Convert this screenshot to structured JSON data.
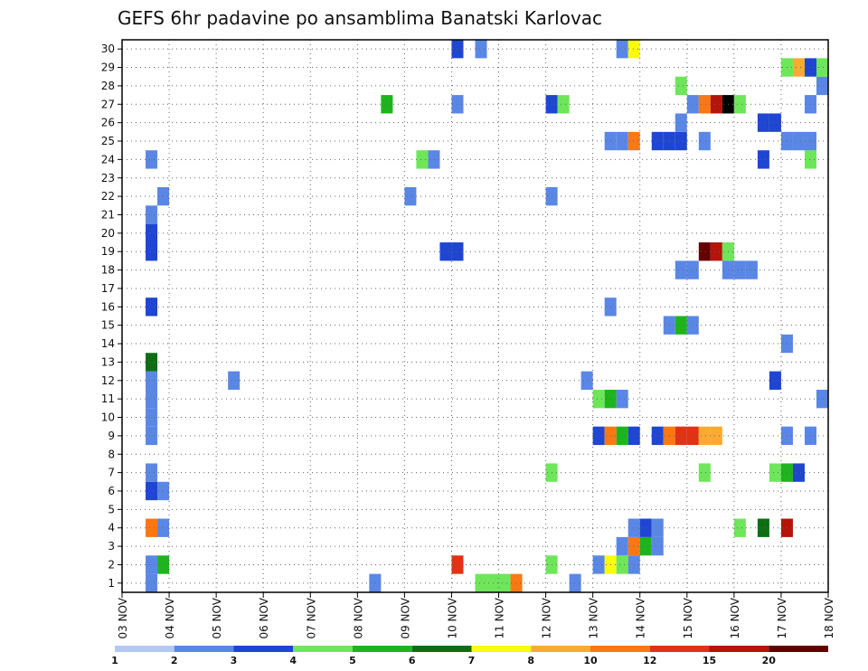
{
  "chart_data": {
    "type": "heatmap",
    "title": "GEFS 6hr padavine po ansamblima Banatski Karlovac",
    "xlabel": "",
    "ylabel": "",
    "x_tick_labels": [
      "03 NOV",
      "04 NOV",
      "05 NOV",
      "06 NOV",
      "07 NOV",
      "08 NOV",
      "09 NOV",
      "10 NOV",
      "11 NOV",
      "12 NOV",
      "13 NOV",
      "14 NOV",
      "15 NOV",
      "16 NOV",
      "17 NOV",
      "18 NOV"
    ],
    "xlim_days": [
      0,
      15
    ],
    "ylim_members": [
      0.5,
      30.5
    ],
    "y_tick_labels": [
      "1",
      "2",
      "3",
      "4",
      "5",
      "6",
      "7",
      "8",
      "9",
      "10",
      "11",
      "12",
      "13",
      "14",
      "15",
      "16",
      "17",
      "18",
      "19",
      "20",
      "21",
      "22",
      "23",
      "24",
      "25",
      "26",
      "27",
      "28",
      "29",
      "30"
    ],
    "grid": true,
    "legend": {
      "placement": "bottom",
      "labels": [
        "1",
        "2",
        "3",
        "4",
        "5",
        "6",
        "7",
        "8",
        "10",
        "12",
        "15",
        "20"
      ],
      "colors": [
        "#b4c8f5",
        "#5a87e6",
        "#1e46d2",
        "#6ee65a",
        "#1eb41e",
        "#0f6e14",
        "#fafa0f",
        "#faaa32",
        "#fa7814",
        "#e13214",
        "#b4140a",
        "#640000"
      ]
    },
    "cell_width_days": 0.25,
    "cells": [
      [
        0.5,
        1,
        1
      ],
      [
        0.5,
        2,
        1
      ],
      [
        0.75,
        2,
        4
      ],
      [
        0.5,
        4,
        8
      ],
      [
        0.75,
        4,
        1
      ],
      [
        0.5,
        6,
        2
      ],
      [
        0.75,
        6,
        1
      ],
      [
        0.5,
        7,
        1
      ],
      [
        0.5,
        9,
        1
      ],
      [
        0.5,
        10,
        1
      ],
      [
        0.5,
        11,
        1
      ],
      [
        0.5,
        12,
        1
      ],
      [
        0.5,
        13,
        5
      ],
      [
        0.5,
        16,
        2
      ],
      [
        0.5,
        19,
        2
      ],
      [
        0.5,
        20,
        2
      ],
      [
        0.5,
        21,
        1
      ],
      [
        0.75,
        22,
        1
      ],
      [
        0.5,
        24,
        1
      ],
      [
        2.25,
        12,
        1
      ],
      [
        5.25,
        1,
        1
      ],
      [
        5.5,
        27,
        4
      ],
      [
        6.0,
        22,
        1
      ],
      [
        6.25,
        24,
        3
      ],
      [
        6.5,
        24,
        1
      ],
      [
        6.75,
        19,
        2
      ],
      [
        7.0,
        19,
        2
      ],
      [
        7.0,
        2,
        9
      ],
      [
        7.0,
        27,
        1
      ],
      [
        7.0,
        30,
        2
      ],
      [
        7.5,
        1,
        3
      ],
      [
        7.75,
        1,
        3
      ],
      [
        8.0,
        1,
        3
      ],
      [
        8.25,
        1,
        8
      ],
      [
        7.5,
        30,
        1
      ],
      [
        9.0,
        2,
        3
      ],
      [
        9.0,
        7,
        3
      ],
      [
        9.0,
        22,
        1
      ],
      [
        9.0,
        27,
        2
      ],
      [
        9.25,
        27,
        3
      ],
      [
        9.5,
        1,
        1
      ],
      [
        9.75,
        12,
        1
      ],
      [
        10.0,
        2,
        1
      ],
      [
        10.25,
        2,
        6
      ],
      [
        10.5,
        2,
        3
      ],
      [
        10.75,
        2,
        1
      ],
      [
        10.5,
        3,
        1
      ],
      [
        10.75,
        3,
        8
      ],
      [
        11.0,
        3,
        4
      ],
      [
        11.25,
        3,
        1
      ],
      [
        10.75,
        4,
        1
      ],
      [
        11.0,
        4,
        2
      ],
      [
        11.25,
        4,
        1
      ],
      [
        10.0,
        9,
        2
      ],
      [
        10.25,
        9,
        8
      ],
      [
        10.5,
        9,
        4
      ],
      [
        10.75,
        9,
        2
      ],
      [
        11.25,
        9,
        2
      ],
      [
        11.5,
        9,
        8
      ],
      [
        11.75,
        9,
        9
      ],
      [
        12.0,
        9,
        9
      ],
      [
        12.25,
        9,
        7
      ],
      [
        12.5,
        9,
        7
      ],
      [
        10.0,
        11,
        3
      ],
      [
        10.25,
        11,
        4
      ],
      [
        10.5,
        11,
        1
      ],
      [
        10.25,
        16,
        1
      ],
      [
        11.5,
        15,
        1
      ],
      [
        11.75,
        15,
        4
      ],
      [
        12.0,
        15,
        1
      ],
      [
        11.75,
        18,
        1
      ],
      [
        12.0,
        18,
        1
      ],
      [
        12.25,
        19,
        11
      ],
      [
        12.5,
        19,
        10
      ],
      [
        12.75,
        19,
        3
      ],
      [
        12.75,
        18,
        1
      ],
      [
        13.0,
        18,
        1
      ],
      [
        13.25,
        18,
        1
      ],
      [
        10.25,
        25,
        1
      ],
      [
        10.5,
        25,
        1
      ],
      [
        10.75,
        25,
        8
      ],
      [
        11.25,
        25,
        2
      ],
      [
        11.5,
        25,
        2
      ],
      [
        11.75,
        25,
        2
      ],
      [
        12.25,
        25,
        1
      ],
      [
        11.75,
        26,
        1
      ],
      [
        12.0,
        27,
        1
      ],
      [
        12.25,
        27,
        8
      ],
      [
        12.5,
        27,
        10
      ],
      [
        12.75,
        27,
        12
      ],
      [
        13.0,
        27,
        3
      ],
      [
        11.75,
        28,
        3
      ],
      [
        10.5,
        30,
        1
      ],
      [
        10.75,
        30,
        6
      ],
      [
        12.25,
        7,
        3
      ],
      [
        13.0,
        4,
        3
      ],
      [
        13.5,
        4,
        5
      ],
      [
        14.0,
        4,
        10
      ],
      [
        13.75,
        7,
        3
      ],
      [
        14.0,
        7,
        4
      ],
      [
        14.25,
        7,
        2
      ],
      [
        13.75,
        12,
        2
      ],
      [
        14.0,
        9,
        1
      ],
      [
        14.5,
        9,
        1
      ],
      [
        14.0,
        14,
        1
      ],
      [
        13.5,
        24,
        2
      ],
      [
        14.5,
        24,
        3
      ],
      [
        14.0,
        25,
        1
      ],
      [
        14.25,
        25,
        1
      ],
      [
        14.5,
        25,
        1
      ],
      [
        13.5,
        26,
        2
      ],
      [
        13.75,
        26,
        2
      ],
      [
        14.5,
        27,
        1
      ],
      [
        14.75,
        28,
        1
      ],
      [
        14.0,
        29,
        3
      ],
      [
        14.25,
        29,
        7
      ],
      [
        14.5,
        29,
        2
      ],
      [
        14.75,
        29,
        3
      ],
      [
        14.75,
        11,
        1
      ]
    ]
  }
}
